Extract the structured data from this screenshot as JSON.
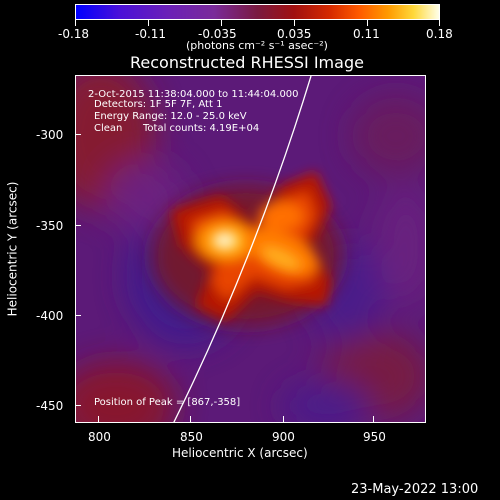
{
  "colorbar": {
    "tick_labels": [
      "-0.18",
      "-0.11",
      "-0.035",
      "0.035",
      "0.11",
      "0.18"
    ],
    "units": "(photons cm⁻² s⁻¹ asec⁻²)"
  },
  "plot": {
    "title": "Reconstructed RHESSI Image",
    "annotations": {
      "time_range": "2-Oct-2015 11:38:04.000 to 11:44:04.000",
      "detectors": "Detectors: 1F 5F 7F, Att 1",
      "energy_range": "Energy Range: 12.0 - 25.0 keV",
      "clean": "Clean",
      "total_counts": "Total counts: 4.19E+04",
      "peak_position": "Position of Peak = [867,-358]"
    },
    "x_axis": {
      "label": "Heliocentric X (arcsec)",
      "ticks": [
        "800",
        "850",
        "900",
        "950"
      ]
    },
    "y_axis": {
      "label": "Heliocentric Y (arcsec)",
      "ticks": [
        "-300",
        "-350",
        "-400",
        "-450"
      ]
    }
  },
  "footer": {
    "timestamp": "23-May-2022 13:00"
  },
  "colors": {
    "background": "#000000",
    "text": "#ffffff"
  }
}
